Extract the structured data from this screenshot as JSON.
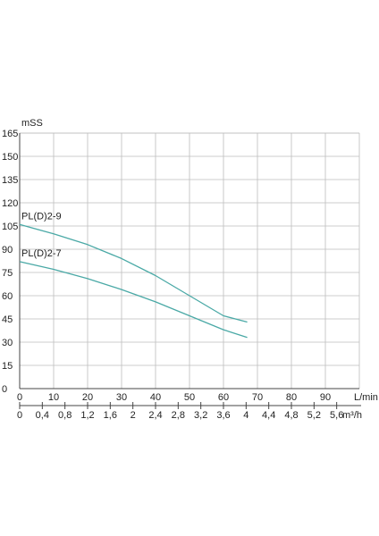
{
  "chart_data": {
    "type": "line",
    "ylabel": "mSS",
    "xlabel": "L/min",
    "x2label": "m³/h",
    "ylim": [
      0,
      165
    ],
    "yticks": [
      "0",
      "15",
      "30",
      "45",
      "60",
      "75",
      "90",
      "105",
      "120",
      "135",
      "150",
      "165"
    ],
    "xlim": [
      0,
      100
    ],
    "xticks": [
      "0",
      "10",
      "20",
      "30",
      "40",
      "50",
      "60",
      "70",
      "80",
      "90"
    ],
    "x2ticks": [
      "0",
      "0,4",
      "0,8",
      "1,2",
      "1,6",
      "2",
      "2,4",
      "2,8",
      "3,2",
      "3,6",
      "4",
      "4,4",
      "4,8",
      "5,2",
      "5,6"
    ],
    "grid": true,
    "line_color": "#4aa9a6",
    "series": [
      {
        "name": "PL(D)2-9",
        "x": [
          0,
          10,
          20,
          30,
          40,
          50,
          60,
          67
        ],
        "y": [
          106,
          100,
          93,
          84,
          73,
          60,
          47,
          43
        ]
      },
      {
        "name": "PL(D)2-7",
        "x": [
          0,
          10,
          20,
          30,
          40,
          50,
          60,
          67
        ],
        "y": [
          82,
          77,
          71,
          64,
          56,
          47,
          38,
          33
        ]
      }
    ]
  }
}
